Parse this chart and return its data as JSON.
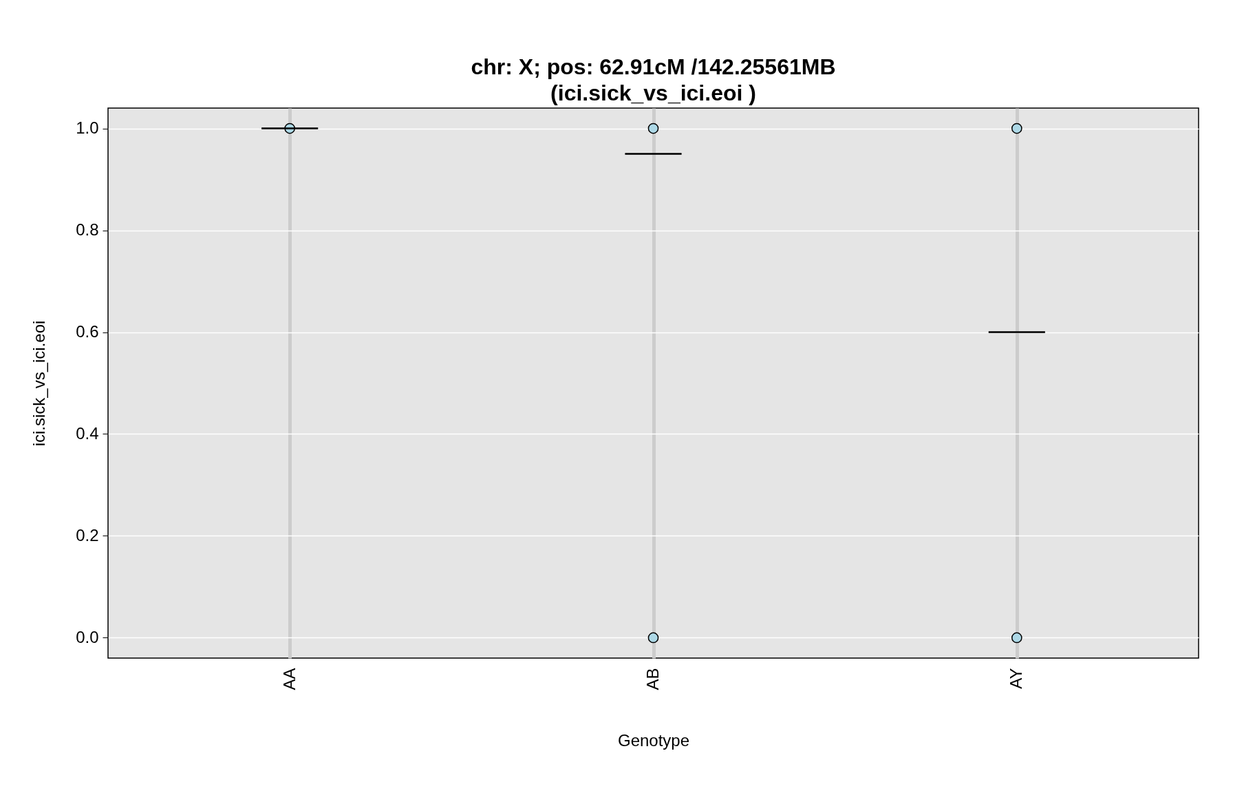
{
  "chart_data": {
    "type": "scatter",
    "title": "chr: X; pos: 62.91cM /142.25561MB\n(ici.sick_vs_ici.eoi )",
    "xlabel": "Genotype",
    "ylabel": "ici.sick_vs_ici.eoi",
    "categories": [
      "AA",
      "AB",
      "AY"
    ],
    "ylim": [
      -0.04,
      1.04
    ],
    "yticks": [
      {
        "value": 0,
        "label": "0.0"
      },
      0.2,
      0.4,
      0.6,
      0.8,
      {
        "value": 1,
        "label": "1.0"
      }
    ],
    "grid": true,
    "series": [
      {
        "type": "scatter",
        "marker": "circle",
        "color": "#add8e6",
        "x": [
          "AA",
          "AB",
          "AB",
          "AY",
          "AY"
        ],
        "values": [
          1,
          1,
          0,
          1,
          0
        ]
      },
      {
        "type": "box",
        "color": "#000000",
        "boxes": [
          {
            "low": 1,
            "q1": 1,
            "median": 1,
            "q3": 1,
            "high": 1
          },
          {
            "low": 0.95,
            "q1": 0.95,
            "median": 0.95,
            "q3": 0.95,
            "high": 0.95
          },
          {
            "low": 0.6,
            "q1": 0.6,
            "median": 0.6,
            "q3": 0.6,
            "high": 0.6
          }
        ]
      }
    ]
  }
}
